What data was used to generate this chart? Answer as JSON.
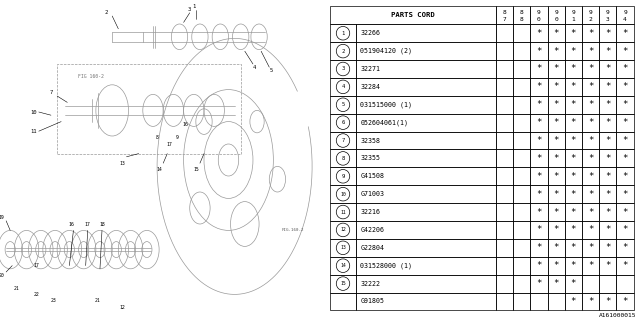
{
  "col_headers_top": [
    "8",
    "8",
    "9",
    "9",
    "9",
    "9",
    "9",
    "9"
  ],
  "col_headers_bot": [
    "7",
    "8",
    "0",
    "0",
    "1",
    "2",
    "3",
    "4"
  ],
  "row_entries": [
    {
      "num": 1,
      "part": "32266",
      "stars": [
        0,
        0,
        1,
        1,
        1,
        1,
        1,
        1
      ],
      "sub": false
    },
    {
      "num": 2,
      "part": "051904120 (2)",
      "stars": [
        0,
        0,
        1,
        1,
        1,
        1,
        1,
        1
      ],
      "sub": false
    },
    {
      "num": 3,
      "part": "32271",
      "stars": [
        0,
        0,
        1,
        1,
        1,
        1,
        1,
        1
      ],
      "sub": false
    },
    {
      "num": 4,
      "part": "32284",
      "stars": [
        0,
        0,
        1,
        1,
        1,
        1,
        1,
        1
      ],
      "sub": false
    },
    {
      "num": 5,
      "part": "031515000 (1)",
      "stars": [
        0,
        0,
        1,
        1,
        1,
        1,
        1,
        1
      ],
      "sub": false
    },
    {
      "num": 6,
      "part": "052604061(1)",
      "stars": [
        0,
        0,
        1,
        1,
        1,
        1,
        1,
        1
      ],
      "sub": false
    },
    {
      "num": 7,
      "part": "32358",
      "stars": [
        0,
        0,
        1,
        1,
        1,
        1,
        1,
        1
      ],
      "sub": false
    },
    {
      "num": 8,
      "part": "32355",
      "stars": [
        0,
        0,
        1,
        1,
        1,
        1,
        1,
        1
      ],
      "sub": false
    },
    {
      "num": 9,
      "part": "G41508",
      "stars": [
        0,
        0,
        1,
        1,
        1,
        1,
        1,
        1
      ],
      "sub": false
    },
    {
      "num": 10,
      "part": "G71003",
      "stars": [
        0,
        0,
        1,
        1,
        1,
        1,
        1,
        1
      ],
      "sub": false
    },
    {
      "num": 11,
      "part": "32216",
      "stars": [
        0,
        0,
        1,
        1,
        1,
        1,
        1,
        1
      ],
      "sub": false
    },
    {
      "num": 12,
      "part": "G42206",
      "stars": [
        0,
        0,
        1,
        1,
        1,
        1,
        1,
        1
      ],
      "sub": false
    },
    {
      "num": 13,
      "part": "G22804",
      "stars": [
        0,
        0,
        1,
        1,
        1,
        1,
        1,
        1
      ],
      "sub": false
    },
    {
      "num": 14,
      "part": "031528000 (1)",
      "stars": [
        0,
        0,
        1,
        1,
        1,
        1,
        1,
        1
      ],
      "sub": false
    },
    {
      "num": 15,
      "part": "32222",
      "stars": [
        0,
        0,
        1,
        1,
        1,
        0,
        0,
        0
      ],
      "sub": false
    },
    {
      "num": 15,
      "part": "G91805",
      "stars": [
        0,
        0,
        0,
        0,
        1,
        1,
        1,
        1
      ],
      "sub": true
    }
  ],
  "bg_color": "#ffffff",
  "lc": "#999999",
  "bc": "#000000",
  "bottom_label": "A161000015"
}
